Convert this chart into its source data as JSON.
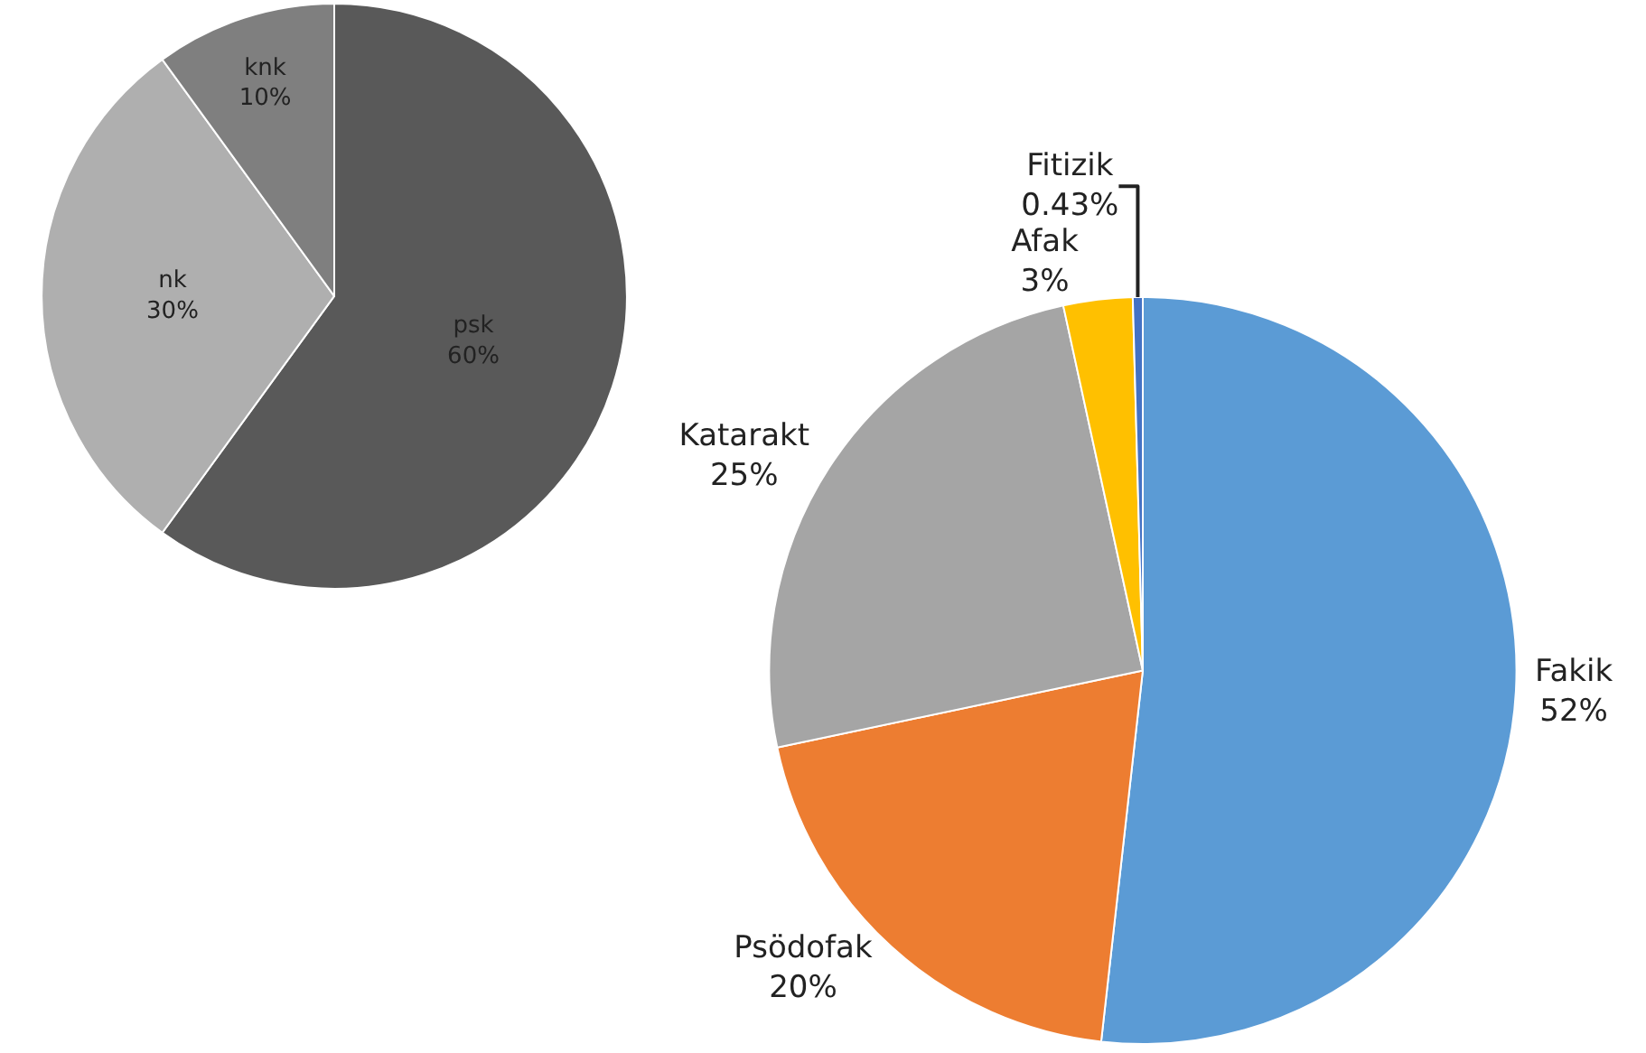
{
  "chart_data": [
    {
      "type": "pie",
      "categories": [
        "psk",
        "nk",
        "knk"
      ],
      "values": [
        60,
        30,
        10
      ],
      "value_labels": [
        "60%",
        "30%",
        "10%"
      ],
      "colors": [
        "#595959",
        "#afafaf",
        "#7f7f7f"
      ]
    },
    {
      "type": "pie",
      "categories": [
        "Fakik",
        "Psödofak",
        "Katarakt",
        "Afak",
        "Fitizik"
      ],
      "values": [
        52,
        20,
        25,
        3,
        0.43
      ],
      "value_labels": [
        "52%",
        "20%",
        "25%",
        "3%",
        "0.43%"
      ],
      "colors": [
        "#5b9bd5",
        "#ed7d31",
        "#a5a5a5",
        "#ffc000",
        "#4472c4"
      ]
    }
  ]
}
